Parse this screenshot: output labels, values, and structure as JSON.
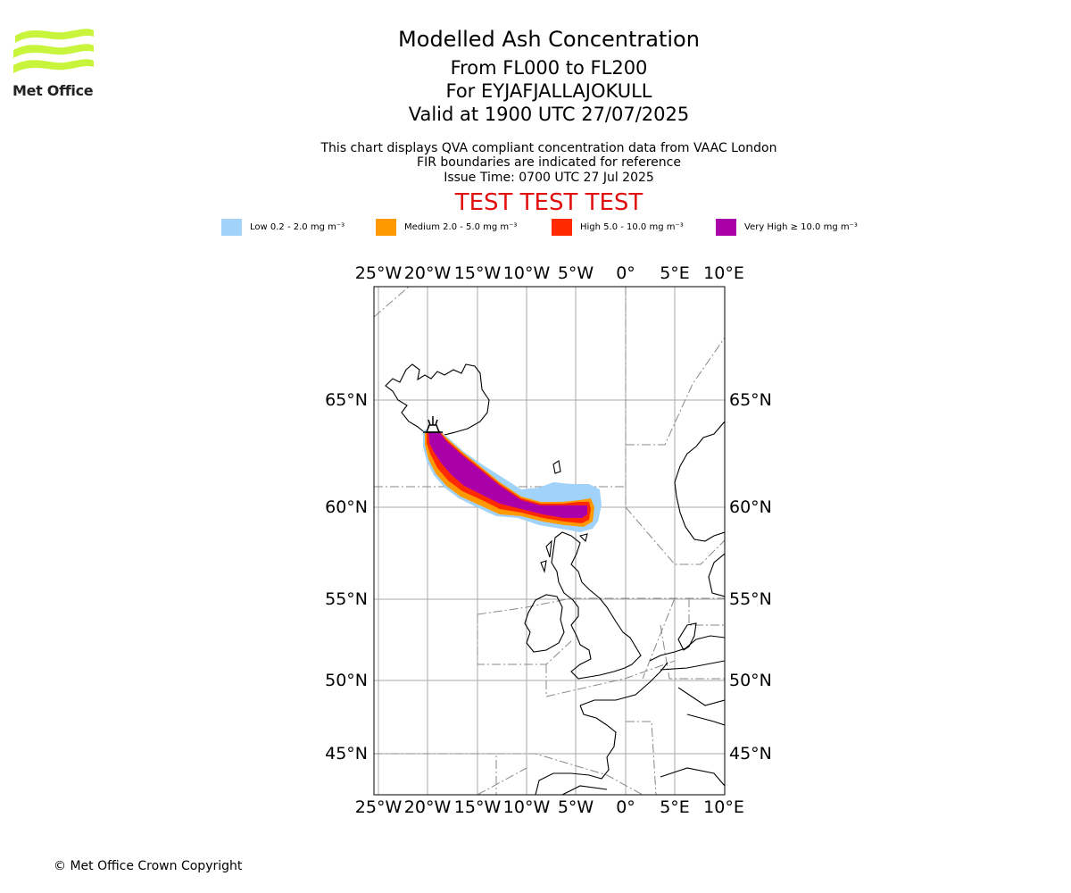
{
  "logo": {
    "text": "Met Office",
    "wave_color": "#c8f53c"
  },
  "title": {
    "line1": "Modelled Ash Concentration",
    "line2": "From FL000 to FL200",
    "line3": "For EYJAFJALLAJOKULL",
    "line4": "Valid at 1900 UTC 27/07/2025"
  },
  "subtitle": {
    "line1": "This chart displays QVA compliant concentration data from VAAC London",
    "line2": "FIR boundaries are indicated for reference",
    "line3": "Issue Time: 0700 UTC 27 Jul 2025"
  },
  "test_banner": "TEST TEST TEST",
  "legend": [
    {
      "label": "Low 0.2 - 2.0 mg m⁻³",
      "color": "#a0d2fa"
    },
    {
      "label": "Medium 2.0 - 5.0 mg m⁻³",
      "color": "#ff9900"
    },
    {
      "label": "High 5.0 - 10.0 mg m⁻³",
      "color": "#ff2a00"
    },
    {
      "label": "Very High  ≥  10.0 mg m⁻³",
      "color": "#aa00aa"
    }
  ],
  "map": {
    "lon_ticks": [
      "25°W",
      "20°W",
      "15°W",
      "10°W",
      "5°W",
      "0°",
      "5°E",
      "10°E"
    ],
    "lat_ticks": [
      "65°N",
      "60°N",
      "55°N",
      "50°N",
      "45°N"
    ],
    "volcano": "EYJAFJALLAJOKULL"
  },
  "copyright": "© Met Office Crown Copyright"
}
